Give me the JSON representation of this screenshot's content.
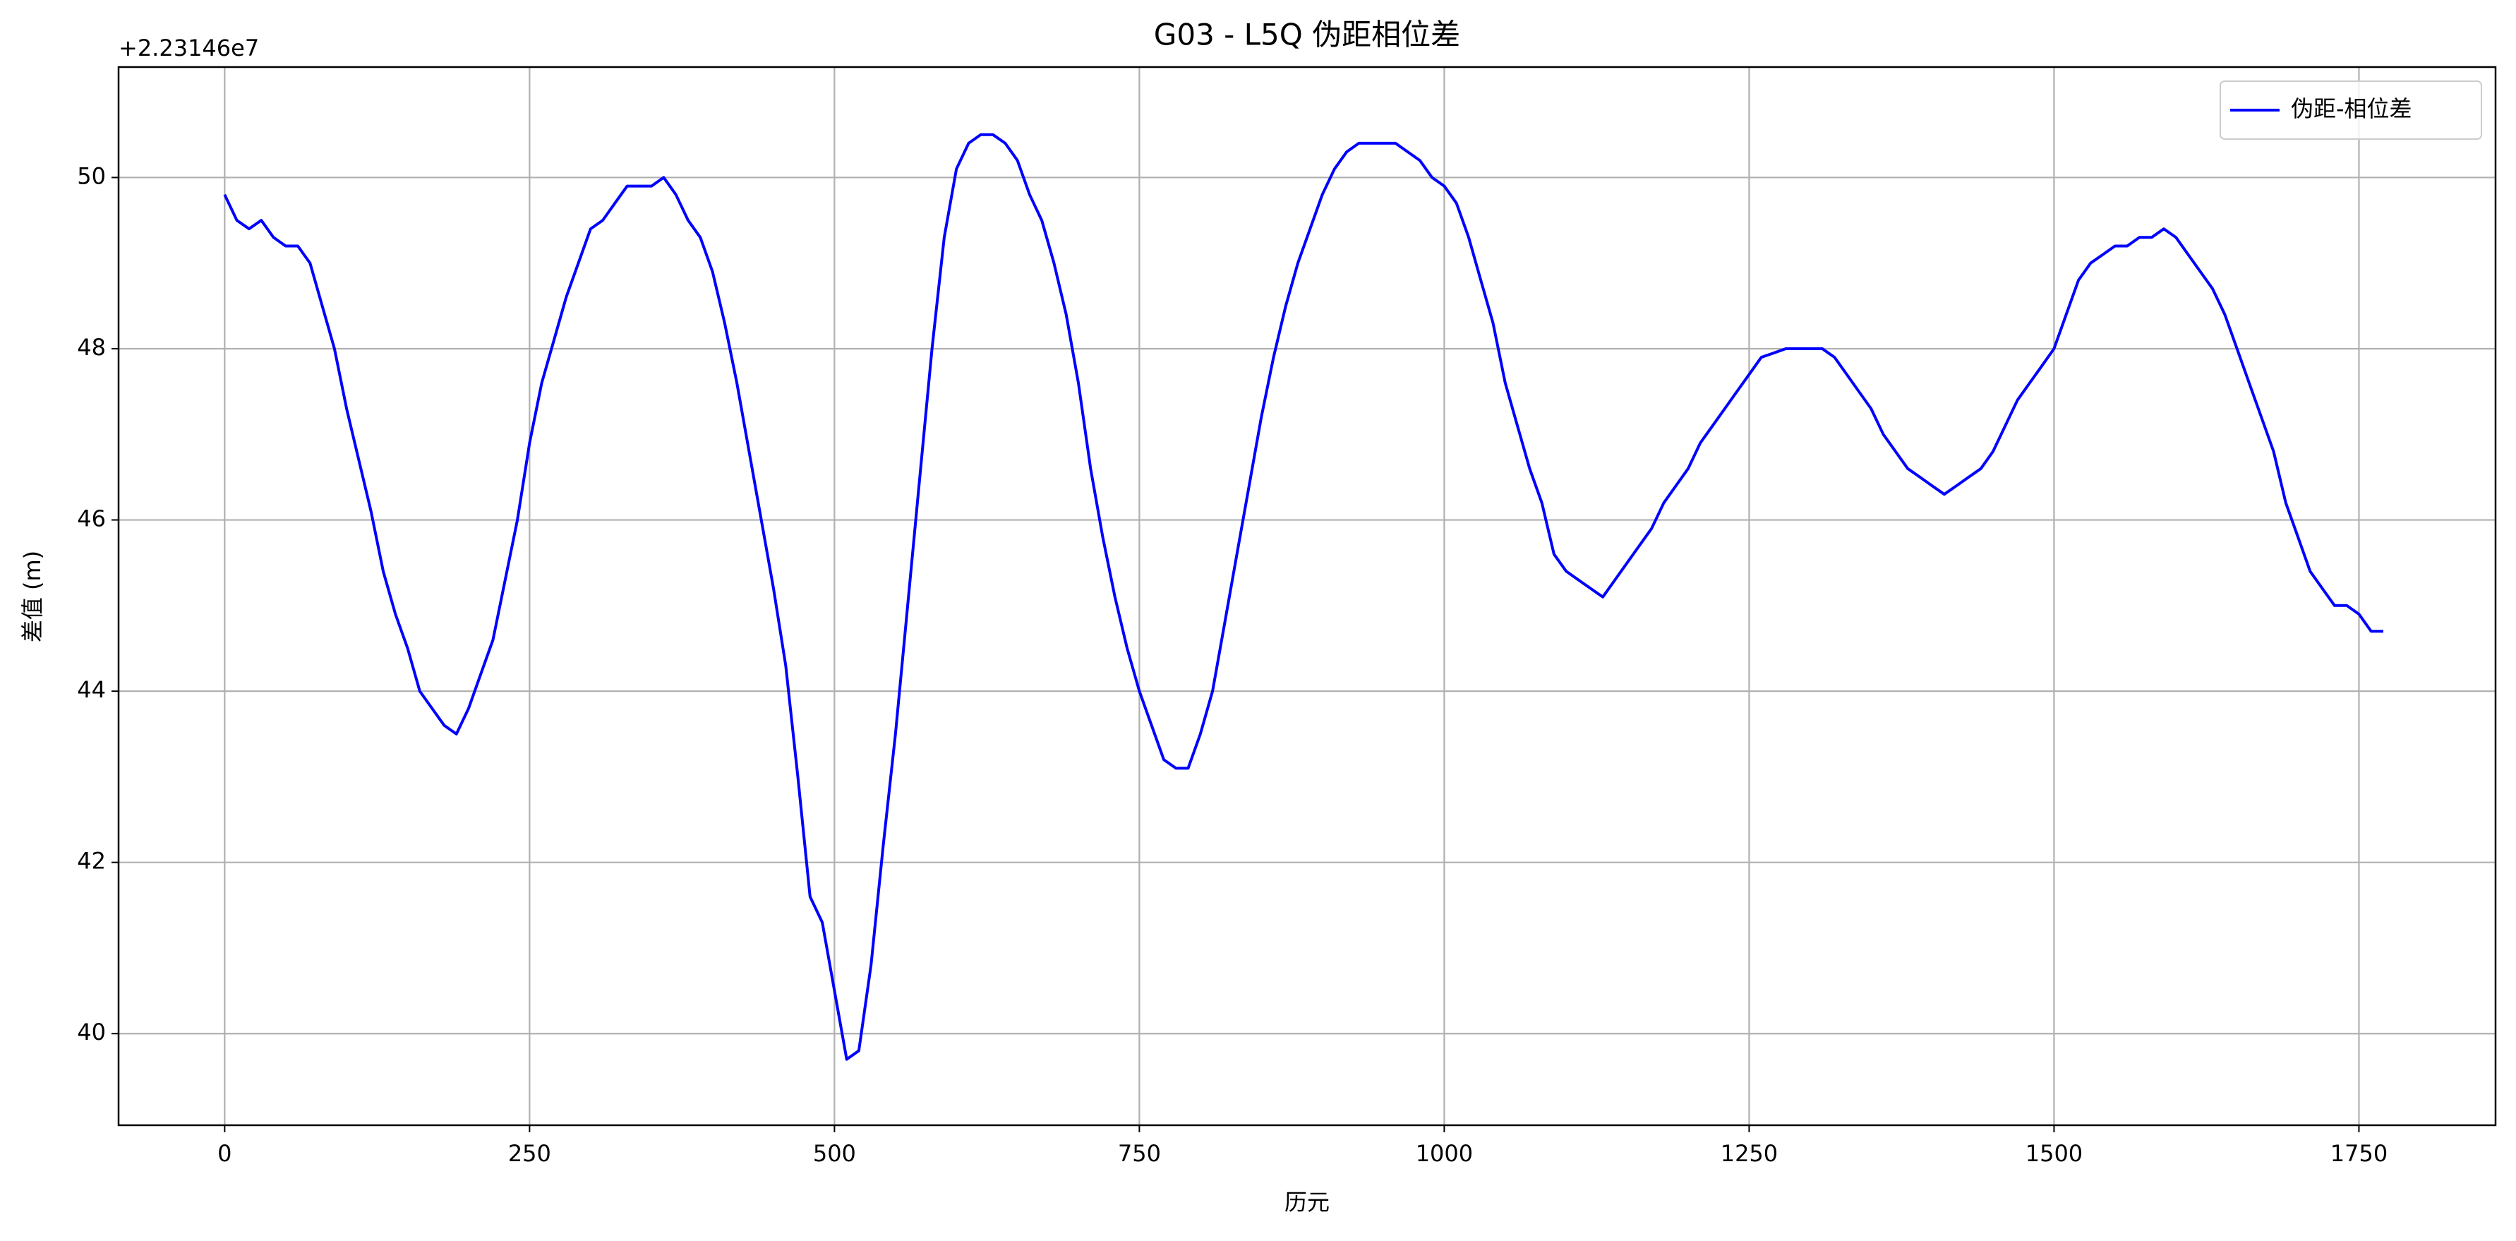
{
  "chart_data": {
    "type": "line",
    "title": "G03 - L5Q 伪距相位差",
    "xlabel": "历元",
    "ylabel": "差值 (m)",
    "offset_label": "+2.23146e7",
    "x": [
      0,
      10,
      20,
      30,
      40,
      50,
      60,
      70,
      80,
      90,
      100,
      110,
      120,
      130,
      140,
      150,
      160,
      170,
      180,
      190,
      200,
      210,
      220,
      230,
      240,
      250,
      260,
      270,
      280,
      290,
      300,
      310,
      320,
      330,
      340,
      350,
      360,
      370,
      380,
      390,
      400,
      410,
      420,
      430,
      440,
      450,
      460,
      470,
      480,
      490,
      500,
      510,
      520,
      530,
      540,
      550,
      560,
      570,
      580,
      590,
      600,
      610,
      620,
      630,
      640,
      650,
      660,
      670,
      680,
      690,
      700,
      710,
      720,
      730,
      740,
      750,
      760,
      770,
      780,
      790,
      800,
      810,
      820,
      830,
      840,
      850,
      860,
      870,
      880,
      890,
      900,
      910,
      920,
      930,
      940,
      950,
      960,
      970,
      980,
      990,
      1000,
      1010,
      1020,
      1030,
      1040,
      1050,
      1060,
      1070,
      1080,
      1090,
      1100,
      1110,
      1120,
      1130,
      1140,
      1150,
      1160,
      1170,
      1180,
      1190,
      1200,
      1210,
      1220,
      1230,
      1240,
      1250,
      1260,
      1270,
      1280,
      1290,
      1300,
      1310,
      1320,
      1330,
      1340,
      1350,
      1360,
      1370,
      1380,
      1390,
      1400,
      1410,
      1420,
      1430,
      1440,
      1450,
      1460,
      1470,
      1480,
      1490,
      1500,
      1510,
      1520,
      1530,
      1540,
      1550,
      1560,
      1570,
      1580,
      1590,
      1600,
      1610,
      1620,
      1630,
      1640,
      1650,
      1660,
      1670,
      1680,
      1690,
      1700,
      1710,
      1720,
      1730,
      1740,
      1750,
      1760,
      1770
    ],
    "series": [
      {
        "name": "伪距-相位差",
        "color": "#0000ff",
        "values": [
          49.8,
          49.5,
          49.4,
          49.5,
          49.3,
          49.2,
          49.2,
          49.0,
          48.5,
          48.0,
          47.3,
          46.7,
          46.1,
          45.4,
          44.9,
          44.5,
          44.0,
          43.8,
          43.6,
          43.5,
          43.8,
          44.2,
          44.6,
          45.3,
          46.0,
          46.9,
          47.6,
          48.1,
          48.6,
          49.0,
          49.4,
          49.5,
          49.7,
          49.9,
          49.9,
          49.9,
          50.0,
          49.8,
          49.5,
          49.3,
          48.9,
          48.3,
          47.6,
          46.8,
          46.0,
          45.2,
          44.3,
          43.0,
          41.6,
          41.3,
          40.5,
          39.7,
          39.8,
          40.8,
          42.2,
          43.5,
          45.0,
          46.5,
          48.0,
          49.3,
          50.1,
          50.4,
          50.5,
          50.5,
          50.4,
          50.2,
          49.8,
          49.5,
          49.0,
          48.4,
          47.6,
          46.6,
          45.8,
          45.1,
          44.5,
          44.0,
          43.6,
          43.2,
          43.1,
          43.1,
          43.5,
          44.0,
          44.8,
          45.6,
          46.4,
          47.2,
          47.9,
          48.5,
          49.0,
          49.4,
          49.8,
          50.1,
          50.3,
          50.4,
          50.4,
          50.4,
          50.4,
          50.3,
          50.2,
          50.0,
          49.9,
          49.7,
          49.3,
          48.8,
          48.3,
          47.6,
          47.1,
          46.6,
          46.2,
          45.6,
          45.4,
          45.3,
          45.2,
          45.1,
          45.3,
          45.5,
          45.7,
          45.9,
          46.2,
          46.4,
          46.6,
          46.9,
          47.1,
          47.3,
          47.5,
          47.7,
          47.9,
          47.95,
          48.0,
          48.0,
          48.0,
          48.0,
          47.9,
          47.7,
          47.5,
          47.3,
          47.0,
          46.8,
          46.6,
          46.5,
          46.4,
          46.3,
          46.4,
          46.5,
          46.6,
          46.8,
          47.1,
          47.4,
          47.6,
          47.8,
          48.0,
          48.4,
          48.8,
          49.0,
          49.1,
          49.2,
          49.2,
          49.3,
          49.3,
          49.4,
          49.3,
          49.1,
          48.9,
          48.7,
          48.4,
          48.0,
          47.6,
          47.2,
          46.8,
          46.2,
          45.8,
          45.4,
          45.2,
          45.0,
          45.0,
          44.9,
          44.7,
          44.7
        ]
      }
    ],
    "xlim": [
      -87,
      1862
    ],
    "ylim": [
      38.93,
      51.29
    ],
    "xticks": [
      0,
      250,
      500,
      750,
      1000,
      1250,
      1500,
      1750
    ],
    "yticks": [
      40,
      42,
      44,
      46,
      48,
      50
    ],
    "grid": true,
    "legend": "upper right"
  }
}
